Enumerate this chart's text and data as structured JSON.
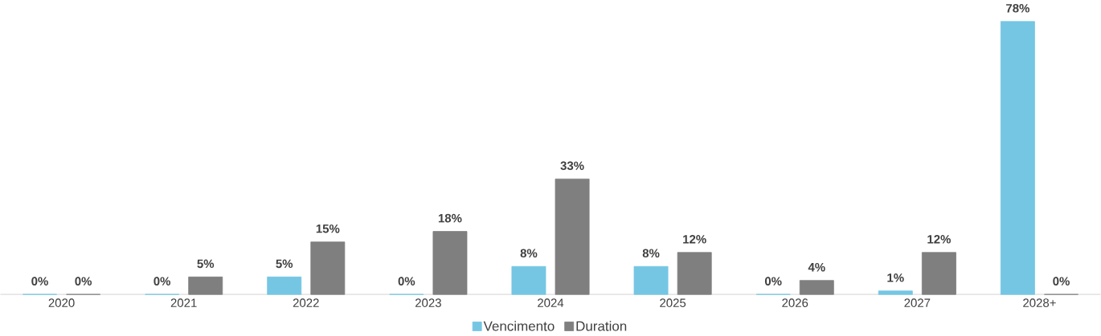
{
  "chart_data": {
    "type": "bar",
    "categories": [
      "2020",
      "2021",
      "2022",
      "2023",
      "2024",
      "2025",
      "2026",
      "2027",
      "2028+"
    ],
    "series": [
      {
        "name": "Vencimento",
        "color": "#75c6e3",
        "values": [
          0,
          0,
          5,
          0,
          8,
          8,
          0,
          1,
          78
        ],
        "value_labels": [
          "0%",
          "0%",
          "5%",
          "0%",
          "8%",
          "8%",
          "0%",
          "1%",
          "78%"
        ]
      },
      {
        "name": "Duration",
        "color": "#7f7f7f",
        "values": [
          0,
          5,
          15,
          18,
          33,
          12,
          4,
          12,
          0
        ],
        "value_labels": [
          "0%",
          "5%",
          "15%",
          "18%",
          "33%",
          "12%",
          "4%",
          "12%",
          "0%"
        ]
      }
    ],
    "legend": "bottom"
  }
}
